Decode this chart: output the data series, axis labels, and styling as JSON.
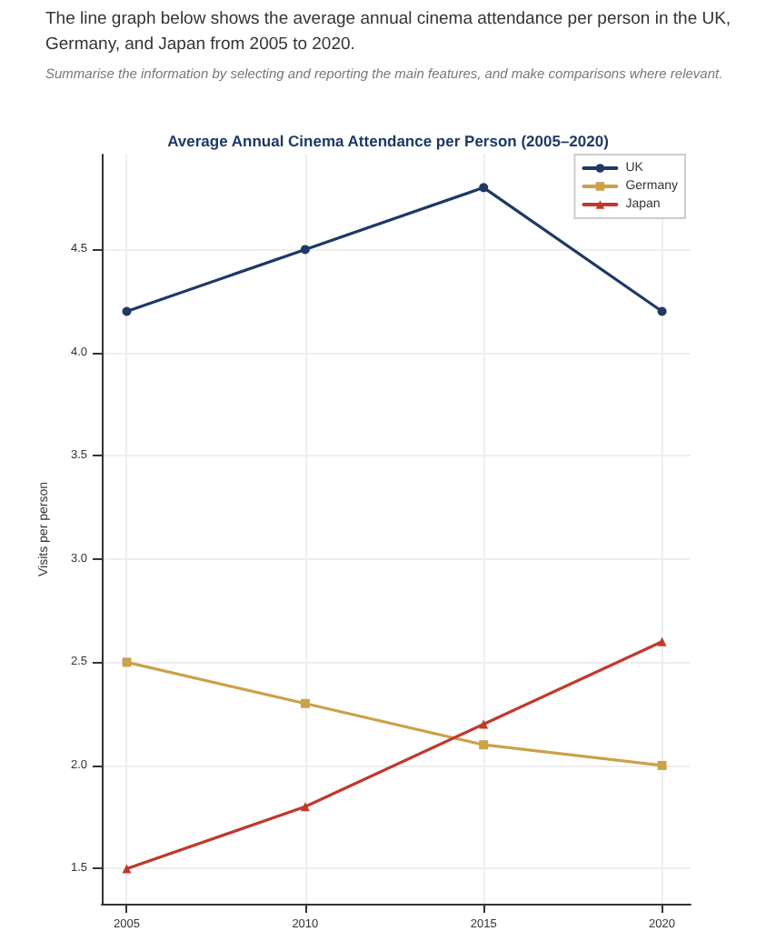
{
  "chart_data": {
    "type": "line",
    "title": "Average Annual Cinema Attendance per Person (2005–2020)",
    "subtitle": "The line graph below shows the average annual cinema attendance per person in the UK, Germany, and Japan from 2005 to 2020.",
    "annotations": [
      "Summarise the information by selecting and reporting the main features, and make comparisons where relevant."
    ],
    "ylabel": "Visits per person",
    "x": [
      2005,
      2010,
      2015,
      2020
    ],
    "series": [
      {
        "name": "UK",
        "color": "#1f3864",
        "marker": "circle",
        "values": [
          4.2,
          4.5,
          4.8,
          4.2
        ]
      },
      {
        "name": "Germany",
        "color": "#c9a24a",
        "marker": "square",
        "values": [
          2.5,
          2.3,
          2.1,
          2.0
        ]
      },
      {
        "name": "Japan",
        "color": "#c0392b",
        "marker": "triangle",
        "values": [
          1.5,
          1.8,
          2.2,
          2.6
        ]
      }
    ],
    "xlim": [
      2004.3,
      2020.8
    ],
    "xticks": [
      2005,
      2010,
      2015,
      2020
    ],
    "ylim": [
      1.33,
      4.96
    ],
    "yticks": [
      1.5,
      {
        "value": 2,
        "label": "2.0"
      },
      2.5,
      {
        "value": 3,
        "label": "3.0"
      },
      3.5,
      {
        "value": 4,
        "label": "4.0"
      },
      4.5
    ],
    "grid": true,
    "legend": "top right",
    "line_style": "solid"
  }
}
